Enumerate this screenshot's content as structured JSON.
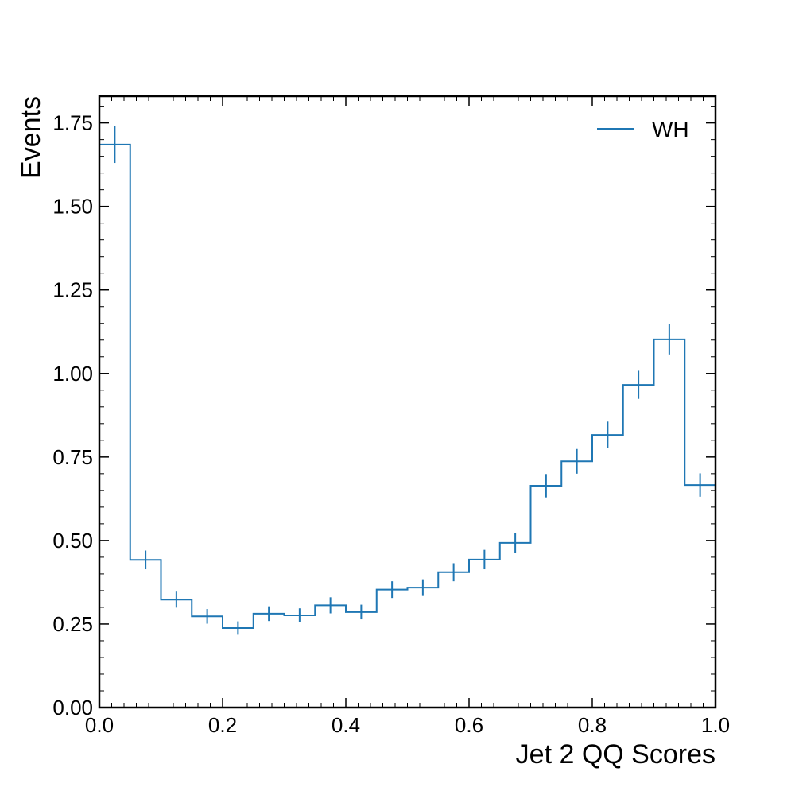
{
  "chart_data": {
    "type": "histogram",
    "xlabel": "Jet 2 QQ Scores",
    "ylabel": "Events",
    "xlim": [
      0.0,
      1.0
    ],
    "ylim": [
      0.0,
      1.83
    ],
    "x_ticks": [
      "0.0",
      "0.2",
      "0.4",
      "0.6",
      "0.8",
      "1.0"
    ],
    "y_ticks": [
      "0.00",
      "0.25",
      "0.50",
      "0.75",
      "1.00",
      "1.25",
      "1.50",
      "1.75"
    ],
    "bin_edges": [
      0.0,
      0.05,
      0.1,
      0.15,
      0.2,
      0.25,
      0.3,
      0.35,
      0.4,
      0.45,
      0.5,
      0.55,
      0.6,
      0.65,
      0.7,
      0.75,
      0.8,
      0.85,
      0.9,
      0.95,
      1.0
    ],
    "series": [
      {
        "name": "WH",
        "color": "#1f77b4",
        "values": [
          1.685,
          0.442,
          0.323,
          0.273,
          0.238,
          0.281,
          0.276,
          0.306,
          0.286,
          0.353,
          0.359,
          0.405,
          0.443,
          0.493,
          0.664,
          0.737,
          0.816,
          0.966,
          1.102,
          0.666
        ],
        "errors": [
          0.055,
          0.028,
          0.024,
          0.022,
          0.02,
          0.022,
          0.021,
          0.024,
          0.022,
          0.025,
          0.025,
          0.027,
          0.029,
          0.03,
          0.035,
          0.037,
          0.04,
          0.042,
          0.045,
          0.035
        ]
      }
    ],
    "legend_position": "top-right",
    "grid": false
  }
}
